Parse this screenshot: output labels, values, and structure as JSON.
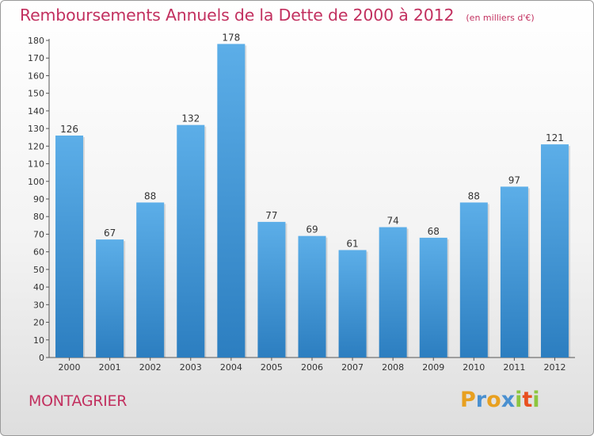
{
  "title": "Remboursements Annuels de la Dette de 2000 à 2012",
  "unit": "(en milliers d'€)",
  "place": "MONTAGRIER",
  "logo": {
    "text": "Proxiti",
    "letters": [
      "P",
      "r",
      "o",
      "x",
      "i",
      "t",
      "i"
    ],
    "colors": [
      "#e8a020",
      "#4a90d0",
      "#e8a020",
      "#4a90d0",
      "#8cc63f",
      "#e85020",
      "#8cc63f"
    ]
  },
  "colors": {
    "accent": "#c2305f",
    "bar_top": "#5caee8",
    "bar_bottom": "#2c7ec0"
  },
  "chart_data": {
    "type": "bar",
    "title": "Remboursements Annuels de la Dette de 2000 à 2012",
    "categories": [
      "2000",
      "2001",
      "2002",
      "2003",
      "2004",
      "2005",
      "2006",
      "2007",
      "2008",
      "2009",
      "2010",
      "2011",
      "2012"
    ],
    "values": [
      126,
      67,
      88,
      132,
      178,
      77,
      69,
      61,
      74,
      68,
      88,
      97,
      121
    ],
    "ylim": [
      0,
      180
    ],
    "yticks": [
      0,
      10,
      20,
      30,
      40,
      50,
      60,
      70,
      80,
      90,
      100,
      110,
      120,
      130,
      140,
      150,
      160,
      170,
      180
    ],
    "grid": false,
    "xlabel": "",
    "ylabel": ""
  }
}
